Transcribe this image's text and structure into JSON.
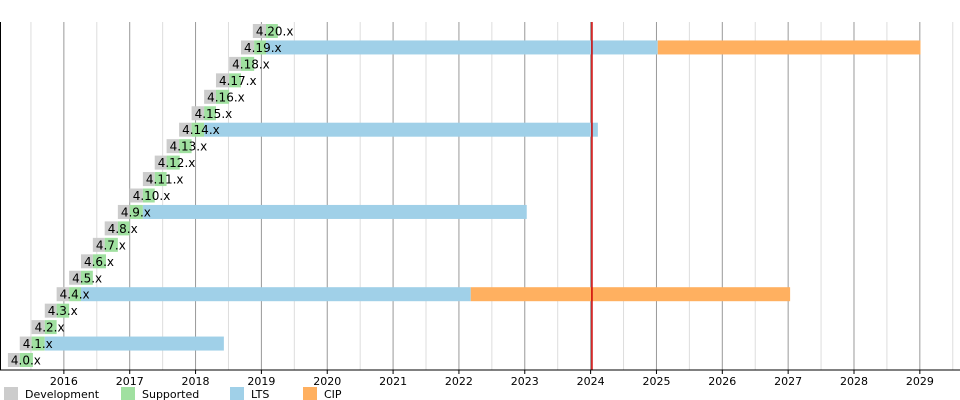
{
  "chart_data": {
    "type": "gantt",
    "xlim": [
      2015.03,
      2029.61
    ],
    "xticks": [
      2016,
      2017,
      2018,
      2019,
      2020,
      2021,
      2022,
      2023,
      2024,
      2025,
      2026,
      2027,
      2028,
      2029
    ],
    "xminorticks": [
      2015.5,
      2016.5,
      2017.5,
      2018.5,
      2019.5,
      2020.5,
      2021.5,
      2022.5,
      2023.5,
      2024.5,
      2025.5,
      2026.5,
      2027.5,
      2028.5,
      2029.5
    ],
    "now_line": 2024.02,
    "now_color": "#cc0000",
    "series": [
      {
        "name": "Development",
        "color": "#cccccc"
      },
      {
        "name": "Supported",
        "color": "#a0e0a0"
      },
      {
        "name": "LTS",
        "color": "#a0d0e8"
      },
      {
        "name": "CIP",
        "color": "#ffb060"
      }
    ],
    "rows": [
      {
        "label": "4.20.x",
        "bounds": [
          2018.87,
          2019.07,
          2019.25
        ]
      },
      {
        "label": "4.19.x",
        "bounds": [
          2018.69,
          2018.89,
          2019.07,
          2025.02,
          2029.01
        ]
      },
      {
        "label": "4.18.x",
        "bounds": [
          2018.51,
          2018.69,
          2018.89
        ]
      },
      {
        "label": "4.17.x",
        "bounds": [
          2018.31,
          2018.51,
          2018.69
        ]
      },
      {
        "label": "4.16.x",
        "bounds": [
          2018.13,
          2018.31,
          2018.51
        ]
      },
      {
        "label": "4.15.x",
        "bounds": [
          2017.94,
          2018.13,
          2018.31
        ]
      },
      {
        "label": "4.14.x",
        "bounds": [
          2017.75,
          2017.94,
          2018.13,
          2024.11
        ]
      },
      {
        "label": "4.13.x",
        "bounds": [
          2017.56,
          2017.75,
          2017.94
        ]
      },
      {
        "label": "4.12.x",
        "bounds": [
          2017.38,
          2017.56,
          2017.76
        ]
      },
      {
        "label": "4.11.x",
        "bounds": [
          2017.2,
          2017.38,
          2017.56
        ]
      },
      {
        "label": "4.10.x",
        "bounds": [
          2017.0,
          2017.2,
          2017.38
        ]
      },
      {
        "label": "4.9.x",
        "bounds": [
          2016.82,
          2017.0,
          2017.2,
          2023.03
        ]
      },
      {
        "label": "4.8.x",
        "bounds": [
          2016.62,
          2016.82,
          2017.0
        ]
      },
      {
        "label": "4.7.x",
        "bounds": [
          2016.44,
          2016.62,
          2016.82
        ]
      },
      {
        "label": "4.6.x",
        "bounds": [
          2016.26,
          2016.44,
          2016.64
        ]
      },
      {
        "label": "4.5.x",
        "bounds": [
          2016.08,
          2016.26,
          2016.44
        ]
      },
      {
        "label": "4.4.x",
        "bounds": [
          2015.89,
          2016.08,
          2016.26,
          2022.18,
          2027.03
        ]
      },
      {
        "label": "4.3.x",
        "bounds": [
          2015.71,
          2015.89,
          2016.08
        ]
      },
      {
        "label": "4.2.x",
        "bounds": [
          2015.51,
          2015.71,
          2015.89
        ]
      },
      {
        "label": "4.1.x",
        "bounds": [
          2015.33,
          2015.51,
          2015.71,
          2018.43
        ]
      },
      {
        "label": "4.0.x",
        "bounds": [
          2015.15,
          2015.33,
          2015.53
        ]
      }
    ]
  }
}
